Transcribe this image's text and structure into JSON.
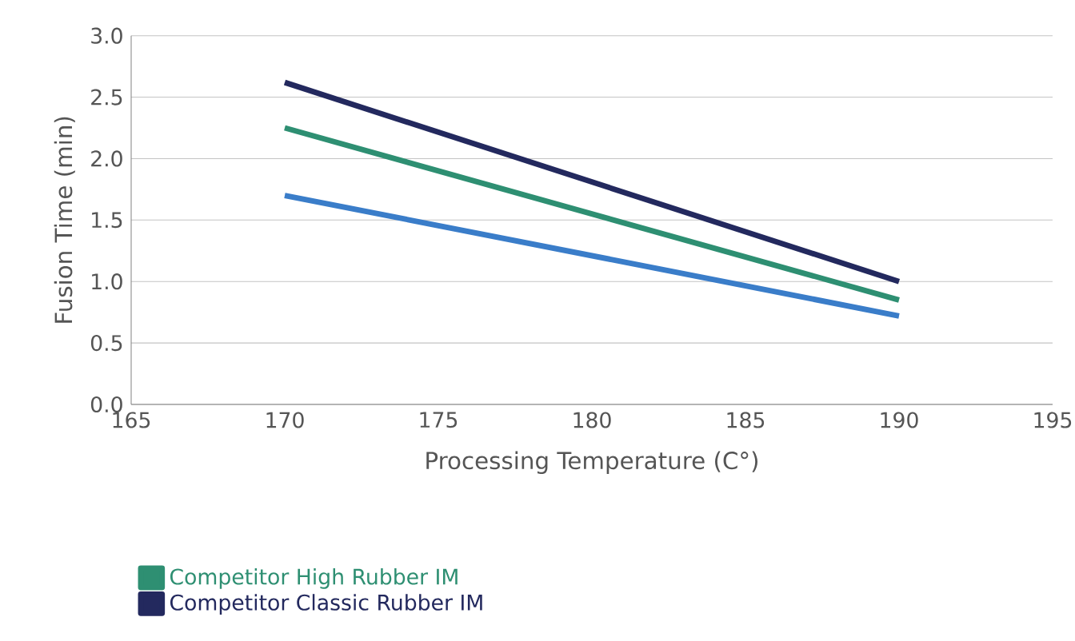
{
  "chart_data": {
    "type": "line",
    "xlabel": "Processing Temperature (C°)",
    "ylabel": "Fusion Time (min)",
    "x": [
      170,
      190
    ],
    "series": [
      {
        "color": "#3a7dc9",
        "values": [
          1.7,
          0.72
        ]
      },
      {
        "name": "Competitor High Rubber IM",
        "color": "#2e8f72",
        "values": [
          2.25,
          0.85
        ]
      },
      {
        "name": "Competitor Classic Rubber IM",
        "color": "#23295e",
        "values": [
          2.62,
          1.0
        ]
      }
    ],
    "xlim": [
      165,
      195
    ],
    "xticks": [
      165,
      170,
      175,
      180,
      185,
      190,
      195
    ],
    "ylim": [
      0,
      3
    ],
    "yticks": [
      {
        "value": 0,
        "label": "0.0"
      },
      {
        "value": 0.5,
        "label": "0.5"
      },
      {
        "value": 1,
        "label": "1.0"
      },
      {
        "value": 1.5,
        "label": "1.5"
      },
      {
        "value": 2,
        "label": "2.0"
      },
      {
        "value": 2.5,
        "label": "2.5"
      },
      {
        "value": 3,
        "label": "3.0"
      }
    ],
    "grid": "y",
    "legend": "bottom",
    "marker": "none",
    "line_style": "solid"
  }
}
